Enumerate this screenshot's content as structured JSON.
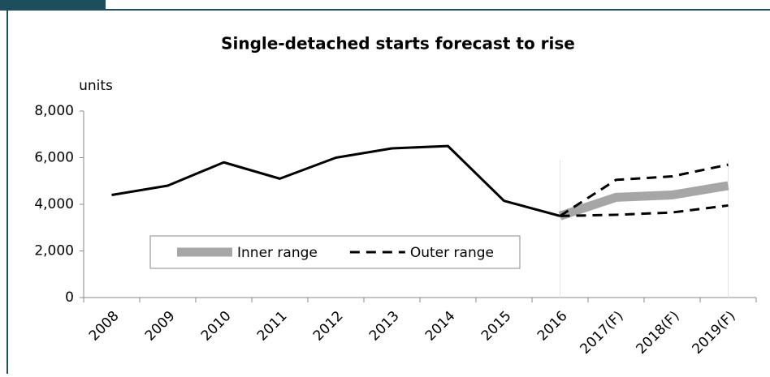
{
  "chart_data": {
    "type": "line",
    "title": "Single-detached starts forecast to rise",
    "y_label": "units",
    "categories": [
      "2008",
      "2009",
      "2010",
      "2011",
      "2012",
      "2013",
      "2014",
      "2015",
      "2016",
      "2017(F)",
      "2018(F)",
      "2019(F)"
    ],
    "series": [
      {
        "color": "#000000",
        "style": "solid",
        "values": [
          4400,
          4800,
          5800,
          5100,
          6000,
          6400,
          6500,
          4150,
          3500,
          null,
          null,
          null
        ]
      },
      {
        "name": "Inner range",
        "color": "#a6a6a6",
        "style": "band",
        "values": [
          null,
          null,
          null,
          null,
          null,
          null,
          null,
          null,
          3500,
          4300,
          4400,
          4800
        ]
      },
      {
        "name": "Outer range",
        "color": "#000000",
        "style": "dashed",
        "values": [
          null,
          null,
          null,
          null,
          null,
          null,
          null,
          null,
          3500,
          5050,
          5200,
          5700
        ],
        "values_low": [
          null,
          null,
          null,
          null,
          null,
          null,
          null,
          null,
          3500,
          3550,
          3650,
          3950
        ]
      }
    ],
    "ylim": [
      0,
      8000
    ],
    "yticks": [
      0,
      {
        "value": 2000,
        "label": "2,000"
      },
      {
        "value": 4000,
        "label": "4,000"
      },
      {
        "value": 6000,
        "label": "6,000"
      },
      {
        "value": 8000,
        "label": "8,000"
      }
    ],
    "grid": false
  }
}
